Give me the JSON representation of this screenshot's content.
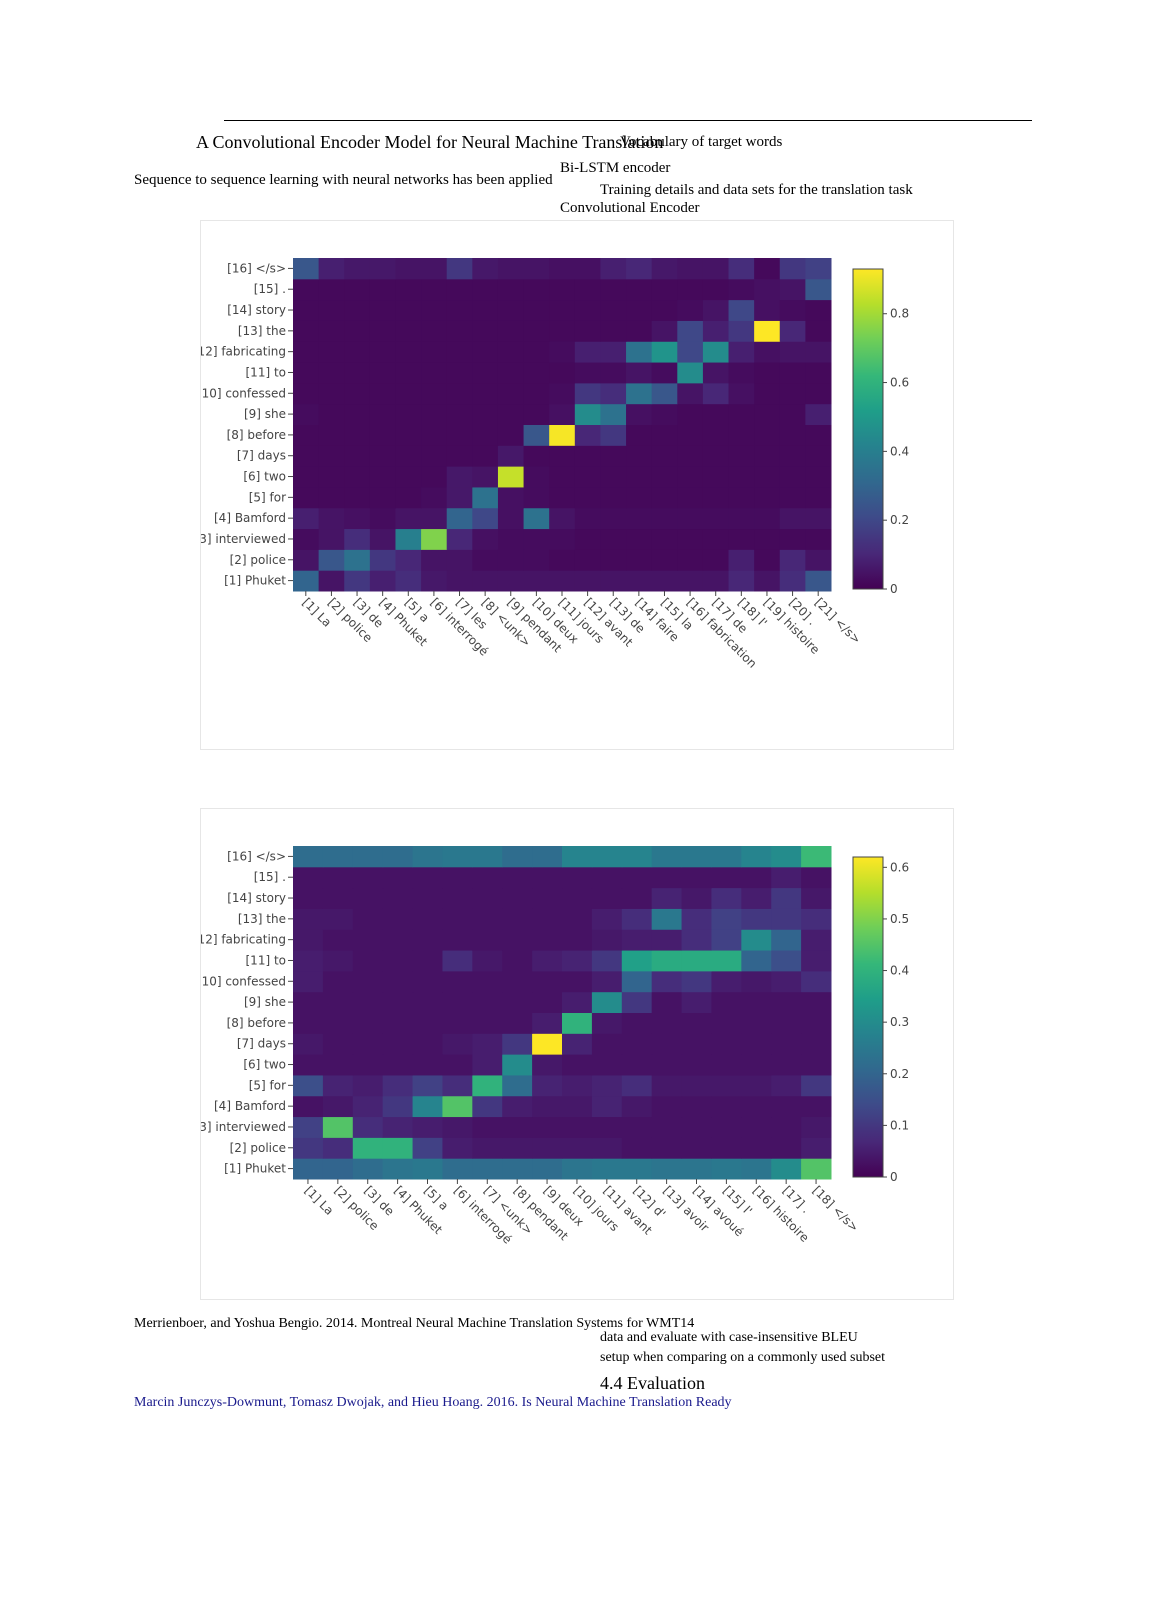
{
  "background_fragments": [
    {
      "text": "A Convolutional Encoder Model for Neural Machine Translation"
    },
    {
      "text": "Sequence to sequence learning with neural networks has been applied"
    },
    {
      "text": "Bi-LSTM encoder"
    },
    {
      "text": "Convolutional Encoder"
    },
    {
      "text": "Vocabulary of target words"
    },
    {
      "text": "Training details and data sets for the translation task"
    },
    {
      "text": "4.4   Evaluation"
    },
    {
      "text": "Marcin Junczys-Dowmunt, Tomasz Dwojak, and Hieu Hoang. 2016. Is Neural Machine Translation Ready"
    },
    {
      "text": "Merrienboer, and Yoshua Bengio. 2014. Montreal Neural Machine Translation Systems for WMT14"
    },
    {
      "text": "setup when comparing on a commonly used subset"
    },
    {
      "text": "data and evaluate with case-insensitive BLEU"
    }
  ],
  "chart_data": [
    {
      "type": "heatmap",
      "title": "",
      "xlabel": "",
      "ylabel": "",
      "x_labels": [
        "[1] La",
        "[2] police",
        "[3] de",
        "[4] Phuket",
        "[5] a",
        "[6] interrogé",
        "[7] les",
        "[8] <unk>",
        "[9] pendant",
        "[10] deux",
        "[11] jours",
        "[12] avant",
        "[13] de",
        "[14] faire",
        "[15] la",
        "[16] fabrication",
        "[17] de",
        "[18] l'",
        "[19] histoire",
        "[20] .",
        "[21] </s>"
      ],
      "y_labels": [
        "[1] Phuket",
        "[2] police",
        "[3] interviewed",
        "[4] Bamford",
        "[5] for",
        "[6] two",
        "[7] days",
        "[8] before",
        "[9] she",
        "[10] confessed",
        "[11] to",
        "[12] fabricating",
        "[13] the",
        "[14] story",
        "[15] .",
        "[16] </s>"
      ],
      "colorbar": {
        "min": 0,
        "max": 0.93,
        "ticks": [
          0,
          0.2,
          0.4,
          0.6,
          0.8
        ],
        "colormap": "viridis"
      },
      "values": [
        [
          0.3,
          0.05,
          0.15,
          0.08,
          0.12,
          0.06,
          0.05,
          0.05,
          0.05,
          0.05,
          0.05,
          0.05,
          0.05,
          0.05,
          0.05,
          0.05,
          0.05,
          0.1,
          0.05,
          0.12,
          0.25
        ],
        [
          0.05,
          0.25,
          0.35,
          0.15,
          0.1,
          0.05,
          0.05,
          0.03,
          0.03,
          0.03,
          0.02,
          0.02,
          0.02,
          0.02,
          0.02,
          0.02,
          0.02,
          0.08,
          0.02,
          0.1,
          0.05
        ],
        [
          0.03,
          0.05,
          0.12,
          0.05,
          0.4,
          0.75,
          0.1,
          0.04,
          0.03,
          0.03,
          0.03,
          0.02,
          0.02,
          0.02,
          0.02,
          0.02,
          0.02,
          0.02,
          0.02,
          0.02,
          0.02
        ],
        [
          0.08,
          0.05,
          0.04,
          0.03,
          0.05,
          0.05,
          0.3,
          0.2,
          0.04,
          0.35,
          0.05,
          0.03,
          0.03,
          0.03,
          0.03,
          0.03,
          0.03,
          0.03,
          0.03,
          0.05,
          0.05
        ],
        [
          0.02,
          0.02,
          0.02,
          0.02,
          0.02,
          0.03,
          0.06,
          0.35,
          0.04,
          0.03,
          0.02,
          0.02,
          0.02,
          0.02,
          0.02,
          0.02,
          0.02,
          0.02,
          0.02,
          0.02,
          0.02
        ],
        [
          0.02,
          0.02,
          0.02,
          0.02,
          0.02,
          0.02,
          0.06,
          0.05,
          0.85,
          0.03,
          0.02,
          0.02,
          0.02,
          0.02,
          0.02,
          0.02,
          0.02,
          0.02,
          0.02,
          0.02,
          0.02
        ],
        [
          0.02,
          0.02,
          0.02,
          0.02,
          0.02,
          0.02,
          0.02,
          0.02,
          0.06,
          0.02,
          0.02,
          0.02,
          0.02,
          0.02,
          0.02,
          0.02,
          0.02,
          0.02,
          0.02,
          0.02,
          0.02
        ],
        [
          0.02,
          0.02,
          0.02,
          0.02,
          0.02,
          0.02,
          0.02,
          0.02,
          0.02,
          0.25,
          0.92,
          0.1,
          0.15,
          0.02,
          0.02,
          0.02,
          0.02,
          0.02,
          0.02,
          0.02,
          0.02
        ],
        [
          0.03,
          0.02,
          0.02,
          0.02,
          0.02,
          0.02,
          0.02,
          0.02,
          0.02,
          0.02,
          0.04,
          0.45,
          0.35,
          0.04,
          0.03,
          0.02,
          0.02,
          0.02,
          0.02,
          0.02,
          0.08
        ],
        [
          0.02,
          0.02,
          0.02,
          0.02,
          0.02,
          0.02,
          0.02,
          0.02,
          0.02,
          0.02,
          0.03,
          0.15,
          0.12,
          0.35,
          0.25,
          0.05,
          0.1,
          0.04,
          0.02,
          0.02,
          0.02
        ],
        [
          0.02,
          0.02,
          0.02,
          0.02,
          0.02,
          0.02,
          0.02,
          0.02,
          0.02,
          0.02,
          0.02,
          0.03,
          0.03,
          0.05,
          0.03,
          0.45,
          0.05,
          0.03,
          0.02,
          0.02,
          0.02
        ],
        [
          0.02,
          0.02,
          0.02,
          0.02,
          0.02,
          0.02,
          0.02,
          0.02,
          0.02,
          0.02,
          0.03,
          0.08,
          0.08,
          0.35,
          0.48,
          0.2,
          0.45,
          0.08,
          0.04,
          0.05,
          0.05
        ],
        [
          0.02,
          0.02,
          0.02,
          0.02,
          0.02,
          0.02,
          0.02,
          0.02,
          0.02,
          0.02,
          0.02,
          0.02,
          0.02,
          0.02,
          0.05,
          0.2,
          0.08,
          0.15,
          0.93,
          0.1,
          0.02
        ],
        [
          0.02,
          0.02,
          0.02,
          0.02,
          0.02,
          0.02,
          0.02,
          0.02,
          0.02,
          0.02,
          0.02,
          0.02,
          0.02,
          0.02,
          0.02,
          0.03,
          0.05,
          0.2,
          0.04,
          0.03,
          0.02
        ],
        [
          0.02,
          0.02,
          0.02,
          0.02,
          0.02,
          0.02,
          0.02,
          0.02,
          0.02,
          0.02,
          0.02,
          0.02,
          0.02,
          0.02,
          0.02,
          0.02,
          0.02,
          0.03,
          0.04,
          0.05,
          0.25
        ],
        [
          0.25,
          0.08,
          0.06,
          0.06,
          0.05,
          0.05,
          0.15,
          0.06,
          0.05,
          0.05,
          0.04,
          0.04,
          0.08,
          0.1,
          0.06,
          0.05,
          0.05,
          0.12,
          0.02,
          0.15,
          0.18
        ]
      ]
    },
    {
      "type": "heatmap",
      "title": "",
      "xlabel": "",
      "ylabel": "",
      "x_labels": [
        "[1] La",
        "[2] police",
        "[3] de",
        "[4] Phuket",
        "[5] a",
        "[6] interrogé",
        "[7] <unk>",
        "[8] pendant",
        "[9] deux",
        "[10] jours",
        "[11] avant",
        "[12] d'",
        "[13] avoir",
        "[14] avoué",
        "[15] l'",
        "[16] histoire",
        "[17] .",
        "[18] </s>"
      ],
      "y_labels": [
        "[1] Phuket",
        "[2] police",
        "[3] interviewed",
        "[4] Bamford",
        "[5] for",
        "[6] two",
        "[7] days",
        "[8] before",
        "[9] she",
        "[10] confessed",
        "[11] to",
        "[12] fabricating",
        "[13] the",
        "[14] story",
        "[15] .",
        "[16] </s>"
      ],
      "colorbar": {
        "min": 0,
        "max": 0.62,
        "ticks": [
          0,
          0.1,
          0.2,
          0.3,
          0.4,
          0.5,
          0.6
        ],
        "colormap": "viridis"
      },
      "values": [
        [
          0.2,
          0.2,
          0.22,
          0.24,
          0.25,
          0.22,
          0.22,
          0.22,
          0.22,
          0.24,
          0.25,
          0.25,
          0.24,
          0.24,
          0.25,
          0.24,
          0.3,
          0.45
        ],
        [
          0.1,
          0.08,
          0.4,
          0.4,
          0.12,
          0.05,
          0.04,
          0.04,
          0.04,
          0.04,
          0.04,
          0.03,
          0.03,
          0.03,
          0.03,
          0.03,
          0.03,
          0.05
        ],
        [
          0.12,
          0.45,
          0.08,
          0.06,
          0.05,
          0.04,
          0.03,
          0.03,
          0.03,
          0.03,
          0.03,
          0.03,
          0.03,
          0.03,
          0.03,
          0.03,
          0.03,
          0.04
        ],
        [
          0.03,
          0.04,
          0.06,
          0.1,
          0.28,
          0.45,
          0.1,
          0.05,
          0.04,
          0.04,
          0.06,
          0.04,
          0.03,
          0.03,
          0.03,
          0.03,
          0.03,
          0.03
        ],
        [
          0.15,
          0.06,
          0.05,
          0.08,
          0.12,
          0.08,
          0.4,
          0.22,
          0.06,
          0.05,
          0.06,
          0.08,
          0.04,
          0.04,
          0.04,
          0.04,
          0.05,
          0.1
        ],
        [
          0.03,
          0.03,
          0.03,
          0.03,
          0.03,
          0.03,
          0.05,
          0.3,
          0.04,
          0.03,
          0.03,
          0.03,
          0.03,
          0.03,
          0.03,
          0.03,
          0.03,
          0.03
        ],
        [
          0.04,
          0.03,
          0.03,
          0.03,
          0.03,
          0.04,
          0.05,
          0.1,
          0.62,
          0.06,
          0.03,
          0.03,
          0.03,
          0.03,
          0.03,
          0.03,
          0.03,
          0.03
        ],
        [
          0.03,
          0.03,
          0.03,
          0.03,
          0.03,
          0.03,
          0.03,
          0.03,
          0.05,
          0.4,
          0.04,
          0.03,
          0.03,
          0.03,
          0.03,
          0.03,
          0.03,
          0.03
        ],
        [
          0.03,
          0.03,
          0.03,
          0.03,
          0.03,
          0.03,
          0.03,
          0.03,
          0.03,
          0.05,
          0.3,
          0.1,
          0.03,
          0.05,
          0.03,
          0.03,
          0.03,
          0.03
        ],
        [
          0.05,
          0.03,
          0.03,
          0.03,
          0.03,
          0.03,
          0.03,
          0.03,
          0.03,
          0.03,
          0.05,
          0.2,
          0.08,
          0.1,
          0.05,
          0.04,
          0.05,
          0.08
        ],
        [
          0.05,
          0.04,
          0.03,
          0.03,
          0.03,
          0.08,
          0.04,
          0.03,
          0.05,
          0.06,
          0.1,
          0.35,
          0.38,
          0.38,
          0.38,
          0.2,
          0.15,
          0.05
        ],
        [
          0.04,
          0.03,
          0.03,
          0.03,
          0.03,
          0.03,
          0.03,
          0.03,
          0.03,
          0.03,
          0.04,
          0.05,
          0.05,
          0.08,
          0.12,
          0.3,
          0.2,
          0.05
        ],
        [
          0.04,
          0.04,
          0.03,
          0.03,
          0.03,
          0.03,
          0.03,
          0.03,
          0.03,
          0.03,
          0.05,
          0.08,
          0.25,
          0.08,
          0.12,
          0.1,
          0.1,
          0.08
        ],
        [
          0.03,
          0.03,
          0.03,
          0.03,
          0.03,
          0.03,
          0.03,
          0.03,
          0.03,
          0.03,
          0.03,
          0.03,
          0.06,
          0.04,
          0.08,
          0.05,
          0.1,
          0.04
        ],
        [
          0.03,
          0.03,
          0.03,
          0.03,
          0.03,
          0.03,
          0.03,
          0.03,
          0.03,
          0.03,
          0.03,
          0.03,
          0.03,
          0.03,
          0.03,
          0.03,
          0.05,
          0.03
        ],
        [
          0.22,
          0.22,
          0.22,
          0.22,
          0.24,
          0.25,
          0.25,
          0.22,
          0.22,
          0.28,
          0.28,
          0.28,
          0.25,
          0.25,
          0.25,
          0.28,
          0.3,
          0.42
        ]
      ]
    }
  ]
}
